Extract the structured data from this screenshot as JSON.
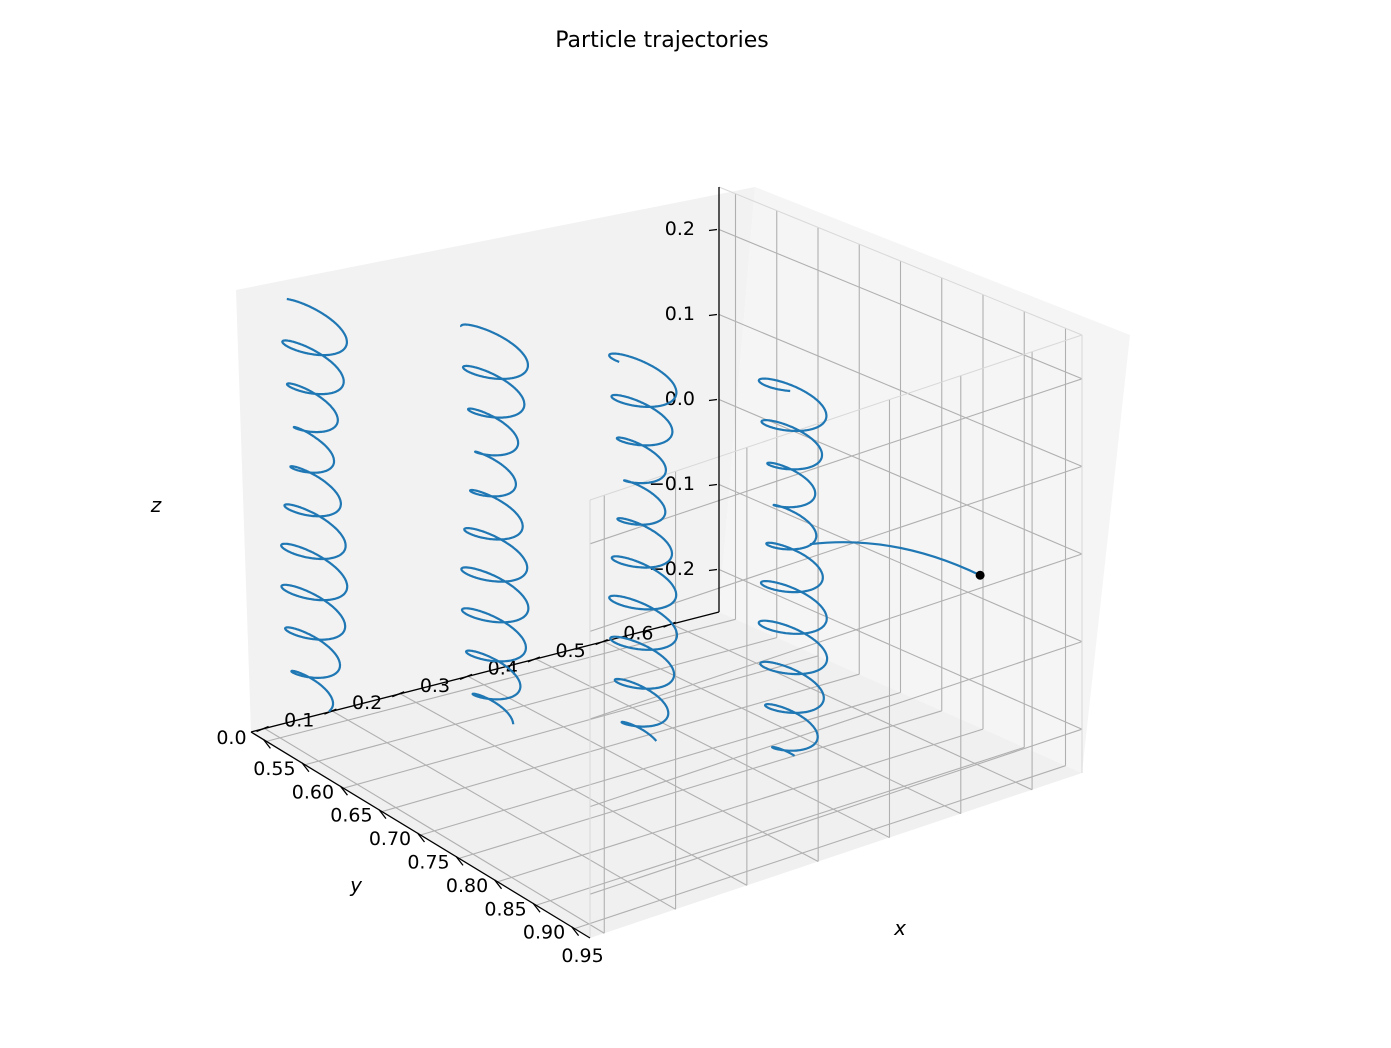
{
  "chart_data": {
    "type": "line3d",
    "title": "Particle trajectories",
    "xlabel": "x",
    "ylabel": "y",
    "zlabel": "z",
    "xlim": [
      0.53,
      0.97
    ],
    "ylim": [
      -0.02,
      0.67
    ],
    "zlim": [
      -0.25,
      0.25
    ],
    "x_ticks": [
      "0.55",
      "0.60",
      "0.65",
      "0.70",
      "0.75",
      "0.80",
      "0.85",
      "0.90",
      "0.95"
    ],
    "y_ticks": [
      "0.0",
      "0.1",
      "0.2",
      "0.3",
      "0.4",
      "0.5",
      "0.6"
    ],
    "z_ticks": [
      "−0.2",
      "−0.1",
      "0.0",
      "0.1",
      "0.2"
    ],
    "grid": true,
    "view": {
      "elev_deg": 20,
      "azim_deg": -60
    },
    "line_color": "#1f77b4",
    "marker_color": "#000000",
    "series": [
      {
        "x0": 0.55,
        "y0": 0.05,
        "amplitude": 0.035,
        "turns": 9.5,
        "z_range": [
          -0.22,
          0.22
        ]
      },
      {
        "x0": 0.65,
        "y0": 0.2,
        "amplitude": 0.035,
        "turns": 9.5,
        "z_range": [
          -0.22,
          0.22
        ]
      },
      {
        "x0": 0.75,
        "y0": 0.3,
        "amplitude": 0.035,
        "turns": 9.5,
        "z_range": [
          -0.22,
          0.22
        ]
      },
      {
        "x0": 0.85,
        "y0": 0.4,
        "amplitude": 0.035,
        "turns": 9.5,
        "z_range": [
          -0.22,
          0.22
        ]
      }
    ],
    "end_point": {
      "x": 0.95,
      "y": 0.55,
      "z": 0.0
    }
  }
}
